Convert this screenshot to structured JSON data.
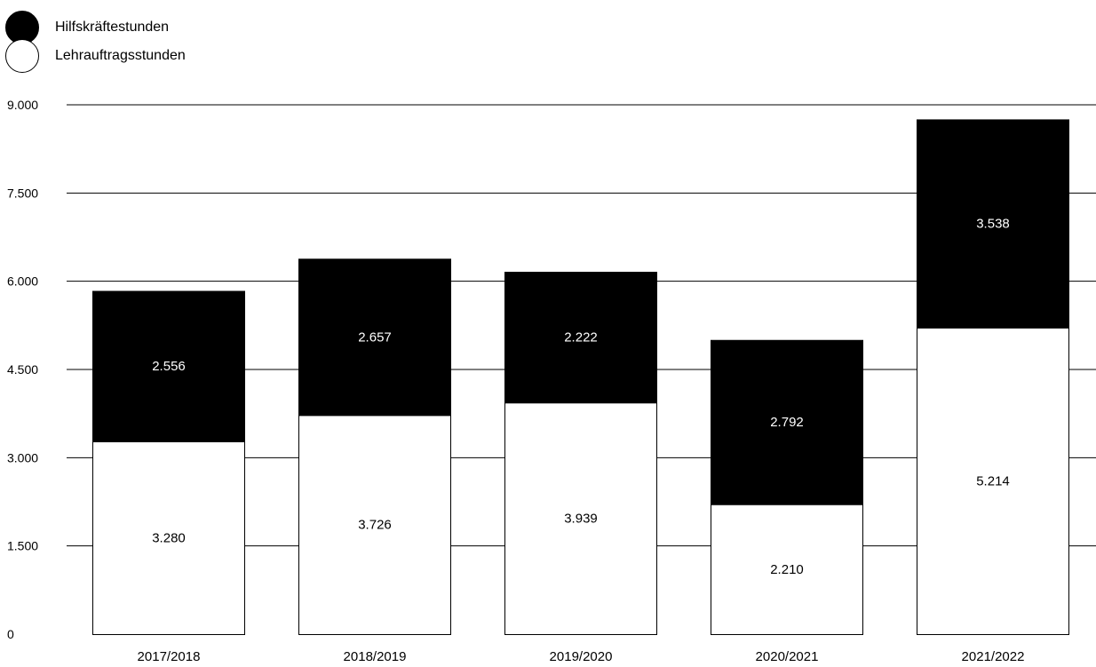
{
  "chart_data": {
    "type": "bar",
    "stacked": true,
    "categories": [
      "2017/2018",
      "2018/2019",
      "2019/2020",
      "2020/2021",
      "2021/2022"
    ],
    "series": [
      {
        "name": "Lehrauftragsstunden",
        "values": [
          3280,
          3726,
          3939,
          2210,
          5214
        ],
        "labels": [
          "3.280",
          "3.726",
          "3.939",
          "2.210",
          "5.214"
        ],
        "fill": "#ffffff",
        "text_color": "#000000"
      },
      {
        "name": "Hilfskräftestunden",
        "values": [
          2556,
          2657,
          2222,
          2792,
          3538
        ],
        "labels": [
          "2.556",
          "2.657",
          "2.222",
          "2.792",
          "3.538"
        ],
        "fill": "#000000",
        "text_color": "#ffffff"
      }
    ],
    "ylim": [
      0,
      9000
    ],
    "yticks": [
      0,
      1500,
      3000,
      4500,
      6000,
      7500,
      9000
    ],
    "ytick_labels": [
      "0",
      "1.500",
      "3.000",
      "4.500",
      "6.000",
      "7.500",
      "9.000"
    ],
    "grid": true,
    "legend_position": "top-left",
    "title": "",
    "xlabel": "",
    "ylabel": ""
  }
}
